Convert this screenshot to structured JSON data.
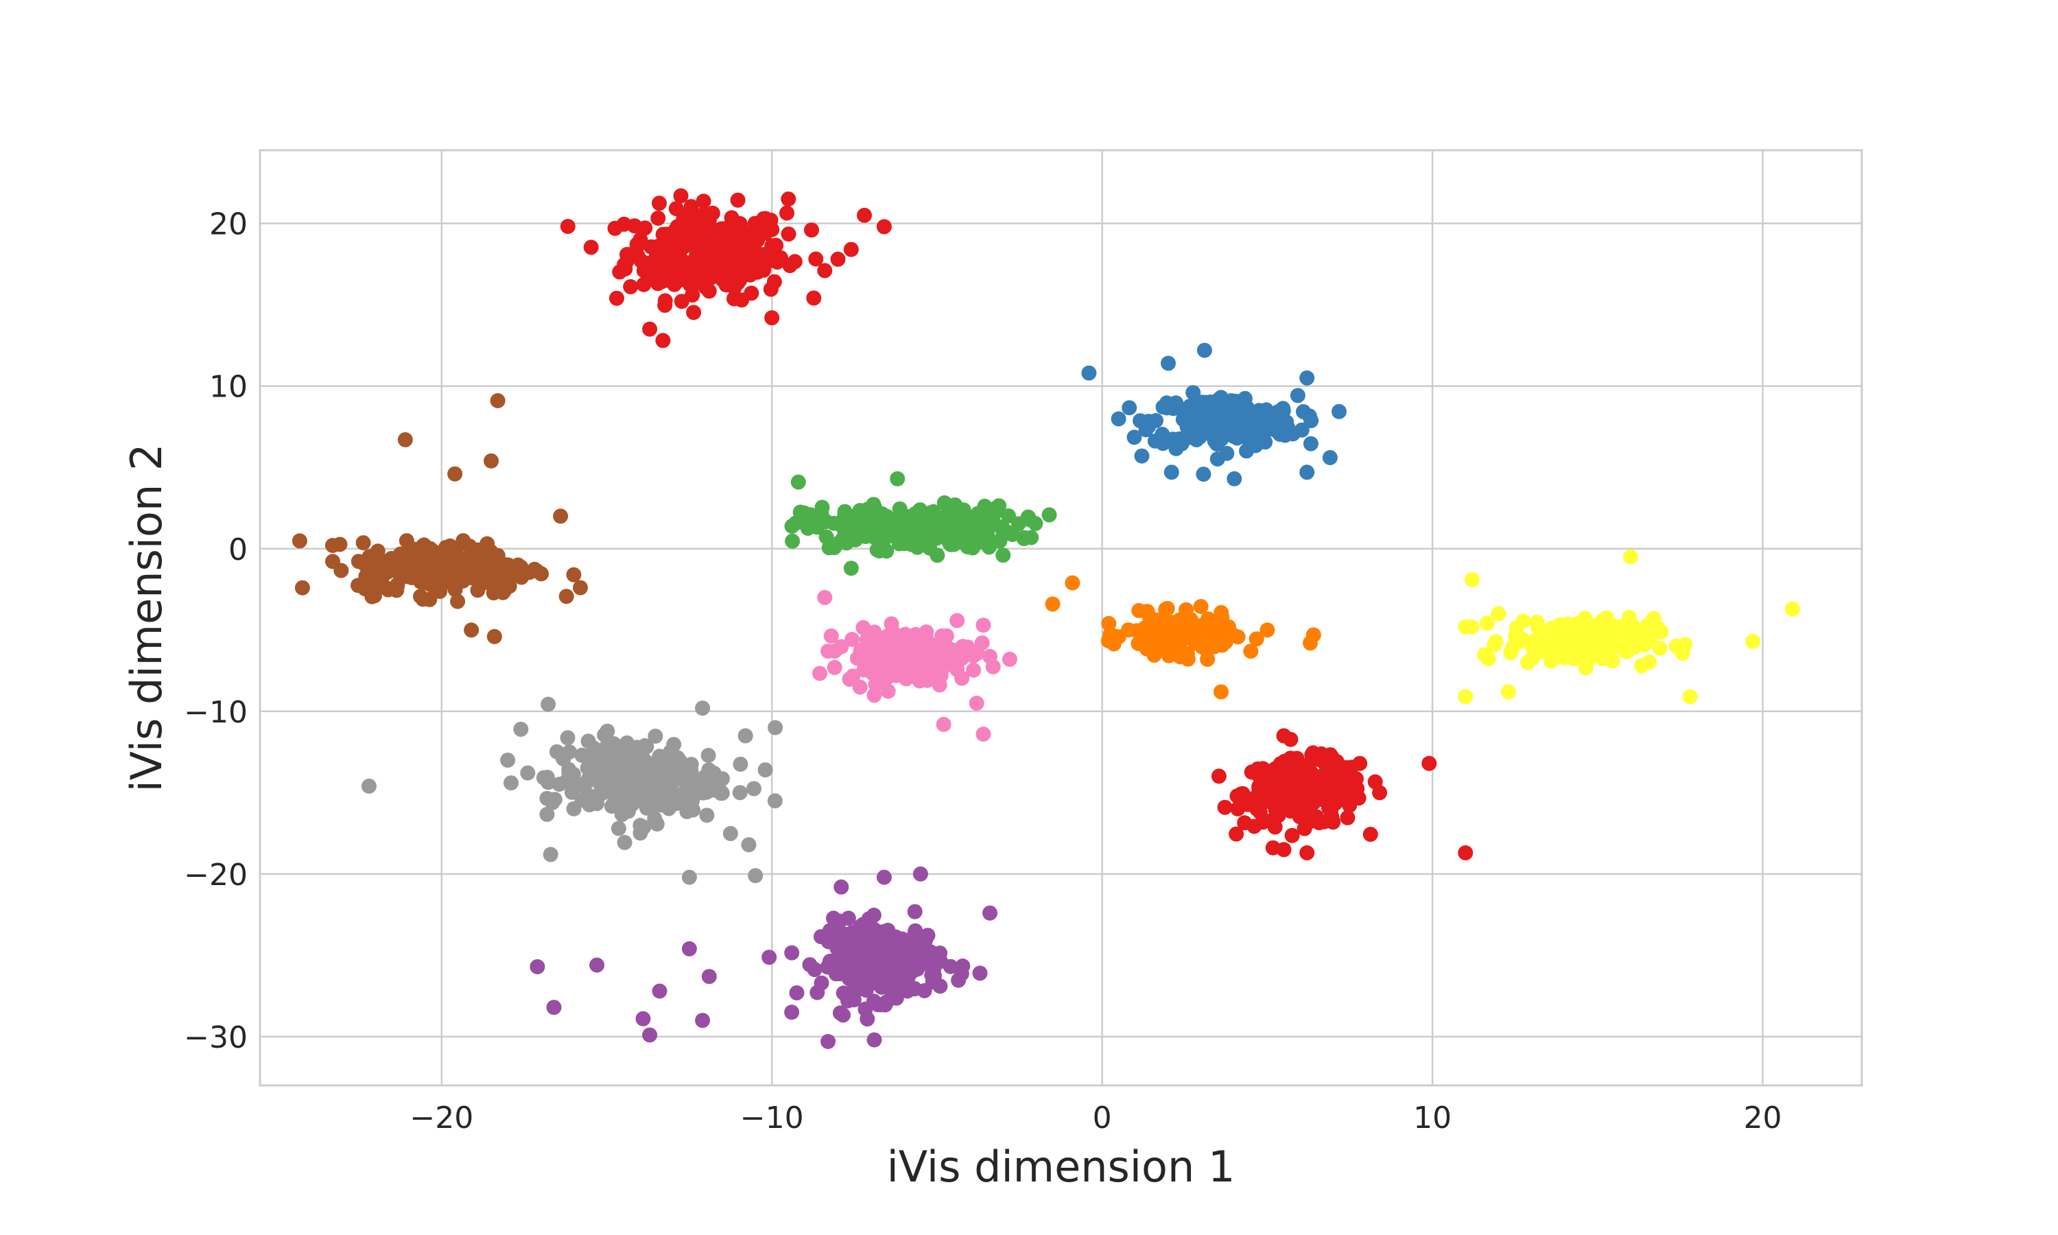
{
  "chart_data": {
    "type": "scatter",
    "title": "",
    "xlabel": "iVis dimension 1",
    "ylabel": "iVis dimension 2",
    "xlim": [
      -25.5,
      23
    ],
    "ylim": [
      -33,
      24.5
    ],
    "xticks": [
      -20,
      -10,
      0,
      10,
      20
    ],
    "yticks": [
      20,
      10,
      0,
      -10,
      -20,
      -30
    ],
    "xtick_labels": [
      "−20",
      "−10",
      "0",
      "10",
      "20"
    ],
    "ytick_labels": [
      "20",
      "10",
      "0",
      "−10",
      "−20",
      "−30"
    ],
    "grid": true,
    "legend": "none",
    "series": [
      {
        "color": "#e41a1c",
        "clusters": [
          {
            "center": [
              -12,
              18.2
            ],
            "spread": [
              1.2,
              1.4
            ],
            "n": 260,
            "extra_points": [
              [
                -14.7,
                15.4
              ],
              [
                -13.7,
                13.5
              ],
              [
                -13.3,
                12.8
              ],
              [
                -10,
                14.2
              ],
              [
                -8.4,
                17.1
              ],
              [
                -7.6,
                18.4
              ],
              [
                -6.6,
                19.8
              ],
              [
                -7.2,
                20.5
              ],
              [
                -9.5,
                21.5
              ],
              [
                -8.8,
                19.6
              ],
              [
                -10.2,
                17.5
              ],
              [
                -8,
                17.8
              ]
            ]
          },
          {
            "center": [
              6.1,
              -15
            ],
            "spread": [
              0.9,
              1.0
            ],
            "n": 240,
            "extra_points": [
              [
                9.9,
                -13.2
              ],
              [
                11,
                -18.7
              ],
              [
                4.5,
                -15.5
              ],
              [
                7.8,
                -13.2
              ],
              [
                8.4,
                -15
              ],
              [
                5.5,
                -18.5
              ],
              [
                6.2,
                -18.7
              ],
              [
                5.5,
                -11.5
              ]
            ]
          }
        ]
      },
      {
        "color": "#377eb8",
        "clusters": [
          {
            "center": [
              3.7,
              7.8
            ],
            "spread": [
              1.1,
              0.8
            ],
            "n": 220,
            "extra_points": [
              [
                -0.4,
                10.8
              ],
              [
                2,
                11.4
              ],
              [
                3.1,
                12.2
              ],
              [
                6.2,
                10.5
              ],
              [
                6.9,
                5.6
              ],
              [
                6.2,
                4.7
              ],
              [
                2.1,
                4.7
              ],
              [
                4,
                4.3
              ],
              [
                1.2,
                5.7
              ]
            ]
          }
        ]
      },
      {
        "color": "#4daf4a",
        "clusters": [
          {
            "center": [
              -5.8,
              1.3
            ],
            "spread": [
              1.6,
              0.65
            ],
            "n": 260,
            "extra_points": [
              [
                -9.2,
                4.1
              ],
              [
                -3.2,
                2.3
              ],
              [
                -2.2,
                1.8
              ],
              [
                -3,
                -0.4
              ],
              [
                -7.6,
                -1.2
              ],
              [
                -6.2,
                4.3
              ],
              [
                -8.5,
                2.2
              ]
            ]
          }
        ]
      },
      {
        "color": "#984ea3",
        "clusters": [
          {
            "center": [
              -6.7,
              -25.3
            ],
            "spread": [
              0.9,
              1.15
            ],
            "n": 250,
            "extra_points": [
              [
                -17.1,
                -25.7
              ],
              [
                -16.6,
                -28.2
              ],
              [
                -15.3,
                -25.6
              ],
              [
                -13.7,
                -29.9
              ],
              [
                -13.4,
                -27.2
              ],
              [
                -12.5,
                -24.6
              ],
              [
                -12.1,
                -29
              ],
              [
                -9.4,
                -28.5
              ],
              [
                -8.3,
                -30.3
              ],
              [
                -6.9,
                -30.2
              ],
              [
                -7.9,
                -20.8
              ],
              [
                -6.6,
                -20.2
              ],
              [
                -5.5,
                -20
              ],
              [
                -3.4,
                -22.4
              ],
              [
                -3.7,
                -26.1
              ],
              [
                -13.9,
                -28.9
              ],
              [
                -11.9,
                -26.3
              ]
            ]
          }
        ]
      },
      {
        "color": "#ff7f00",
        "clusters": [
          {
            "center": [
              2.3,
              -5.3
            ],
            "spread": [
              0.8,
              0.6
            ],
            "n": 160,
            "extra_points": [
              [
                -0.9,
                -2.1
              ],
              [
                -1.5,
                -3.4
              ],
              [
                6.4,
                -5.3
              ],
              [
                6.3,
                -5.8
              ],
              [
                5,
                -5
              ],
              [
                3.6,
                -8.8
              ],
              [
                0.2,
                -4.6
              ],
              [
                4.5,
                -6.3
              ]
            ]
          }
        ]
      },
      {
        "color": "#ffff33",
        "clusters": [
          {
            "center": [
              14.5,
              -5.7
            ],
            "spread": [
              1.1,
              0.7
            ],
            "n": 190,
            "extra_points": [
              [
                11.2,
                -1.9
              ],
              [
                11,
                -4.8
              ],
              [
                11,
                -9.1
              ],
              [
                12.3,
                -8.8
              ],
              [
                16,
                -0.5
              ],
              [
                17.8,
                -9.1
              ],
              [
                19.7,
                -5.7
              ],
              [
                20.9,
                -3.7
              ],
              [
                12,
                -4
              ]
            ]
          }
        ]
      },
      {
        "color": "#a65628",
        "clusters": [
          {
            "center": [
              -19.9,
              -1.2
            ],
            "spread": [
              1.3,
              0.8
            ],
            "n": 240,
            "extra_points": [
              [
                -23.3,
                0.2
              ],
              [
                -21.1,
                6.7
              ],
              [
                -18.3,
                9.1
              ],
              [
                -18.5,
                5.4
              ],
              [
                -16.4,
                2
              ],
              [
                -16,
                -1.6
              ],
              [
                -15.8,
                -2.4
              ],
              [
                -18.4,
                -5.4
              ],
              [
                -19.1,
                -5
              ],
              [
                -19.6,
                4.6
              ],
              [
                -22.1,
                -1
              ]
            ]
          }
        ]
      },
      {
        "color": "#f781bf",
        "clusters": [
          {
            "center": [
              -5.9,
              -6.6
            ],
            "spread": [
              0.95,
              0.8
            ],
            "n": 200,
            "extra_points": [
              [
                -8.4,
                -3
              ],
              [
                -8.1,
                -7.3
              ],
              [
                -8.3,
                -6.3
              ],
              [
                -3.6,
                -4.7
              ],
              [
                -2.8,
                -6.8
              ],
              [
                -3.6,
                -11.4
              ],
              [
                -4.8,
                -10.8
              ],
              [
                -3.8,
                -9.5
              ]
            ]
          }
        ]
      },
      {
        "color": "#999999",
        "clusters": [
          {
            "center": [
              -14.2,
              -14.2
            ],
            "spread": [
              1.3,
              1.3
            ],
            "n": 230,
            "extra_points": [
              [
                -22.2,
                -14.6
              ],
              [
                -17.6,
                -11.1
              ],
              [
                -18,
                -13
              ],
              [
                -17.9,
                -14.4
              ],
              [
                -16.7,
                -18.8
              ],
              [
                -12.5,
                -20.2
              ],
              [
                -10.5,
                -20.1
              ],
              [
                -10.7,
                -18.2
              ],
              [
                -10.2,
                -13.6
              ],
              [
                -9.9,
                -11
              ],
              [
                -10.8,
                -11.5
              ],
              [
                -12.1,
                -9.8
              ]
            ]
          }
        ]
      }
    ]
  }
}
